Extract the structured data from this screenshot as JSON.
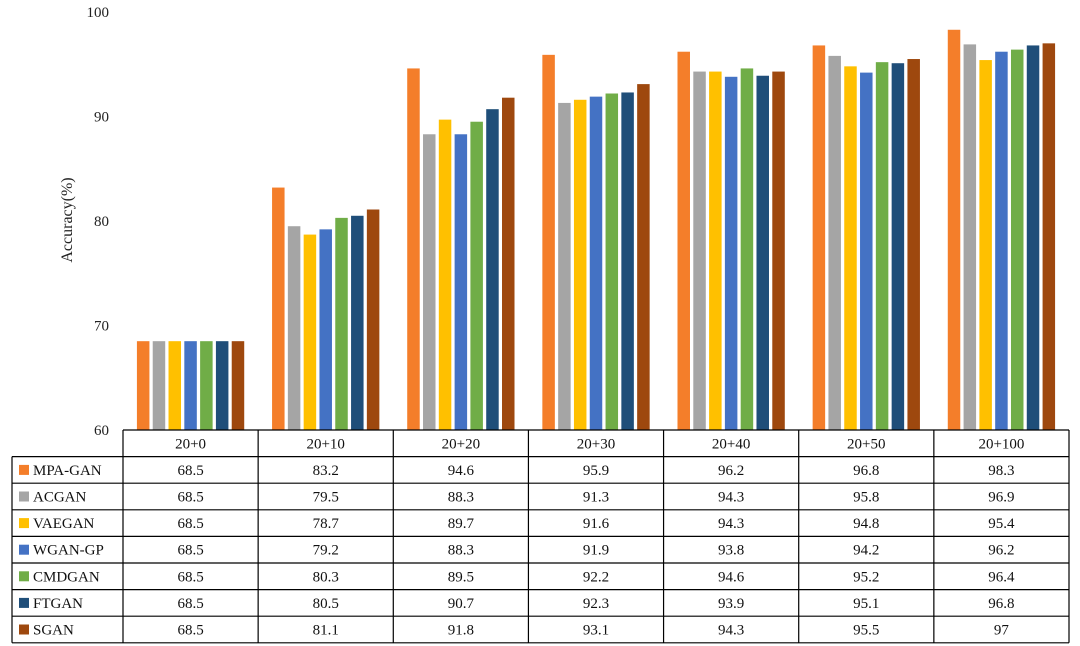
{
  "chart_data": {
    "type": "bar",
    "ylabel": "Accuracy(%)",
    "ylim": [
      60,
      100
    ],
    "yticks": [
      60,
      70,
      80,
      90,
      100
    ],
    "categories": [
      "20+0",
      "20+10",
      "20+20",
      "20+30",
      "20+40",
      "20+50",
      "20+100"
    ],
    "series": [
      {
        "name": "MPA-GAN",
        "color": "#F47E2A",
        "values": [
          68.5,
          83.2,
          94.6,
          95.9,
          96.2,
          96.8,
          98.3
        ],
        "labels": [
          "68.5",
          "83.2",
          "94.6",
          "95.9",
          "96.2",
          "96.8",
          "98.3"
        ]
      },
      {
        "name": "ACGAN",
        "color": "#A5A5A5",
        "values": [
          68.5,
          79.5,
          88.3,
          91.3,
          94.3,
          95.8,
          96.9
        ],
        "labels": [
          "68.5",
          "79.5",
          "88.3",
          "91.3",
          "94.3",
          "95.8",
          "96.9"
        ]
      },
      {
        "name": "VAEGAN",
        "color": "#FFC000",
        "values": [
          68.5,
          78.7,
          89.7,
          91.6,
          94.3,
          94.8,
          95.4
        ],
        "labels": [
          "68.5",
          "78.7",
          "89.7",
          "91.6",
          "94.3",
          "94.8",
          "95.4"
        ]
      },
      {
        "name": "WGAN-GP",
        "color": "#4472C4",
        "values": [
          68.5,
          79.2,
          88.3,
          91.9,
          93.8,
          94.2,
          96.2
        ],
        "labels": [
          "68.5",
          "79.2",
          "88.3",
          "91.9",
          "93.8",
          "94.2",
          "96.2"
        ]
      },
      {
        "name": "CMDGAN",
        "color": "#70AD47",
        "values": [
          68.5,
          80.3,
          89.5,
          92.2,
          94.6,
          95.2,
          96.4
        ],
        "labels": [
          "68.5",
          "80.3",
          "89.5",
          "92.2",
          "94.6",
          "95.2",
          "96.4"
        ]
      },
      {
        "name": "FTGAN",
        "color": "#1F4E79",
        "values": [
          68.5,
          80.5,
          90.7,
          92.3,
          93.9,
          95.1,
          96.8
        ],
        "labels": [
          "68.5",
          "80.5",
          "90.7",
          "92.3",
          "93.9",
          "95.1",
          "96.8"
        ]
      },
      {
        "name": "SGAN",
        "color": "#9E480E",
        "values": [
          68.5,
          81.1,
          91.8,
          93.1,
          94.3,
          95.5,
          97.0
        ],
        "labels": [
          "68.5",
          "81.1",
          "91.8",
          "93.1",
          "94.3",
          "95.5",
          "97"
        ]
      }
    ],
    "grid": false,
    "legend": "data-table"
  }
}
